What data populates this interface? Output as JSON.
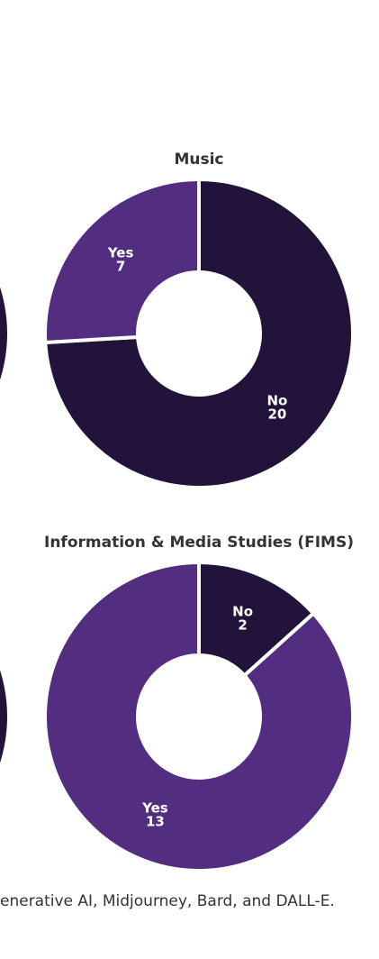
{
  "chart_data": [
    {
      "type": "donut",
      "title": "Music",
      "categories": [
        "No",
        "Yes"
      ],
      "values": [
        20,
        7
      ],
      "colors": [
        "#22133a",
        "#522d80"
      ]
    },
    {
      "type": "donut",
      "title": "Information & Media Studies (FIMS)",
      "categories": [
        "No",
        "Yes"
      ],
      "values": [
        2,
        13
      ],
      "colors": [
        "#22133a",
        "#522d80"
      ]
    }
  ],
  "footer": "enerative AI, Midjourney, Bard, and DALL-E."
}
